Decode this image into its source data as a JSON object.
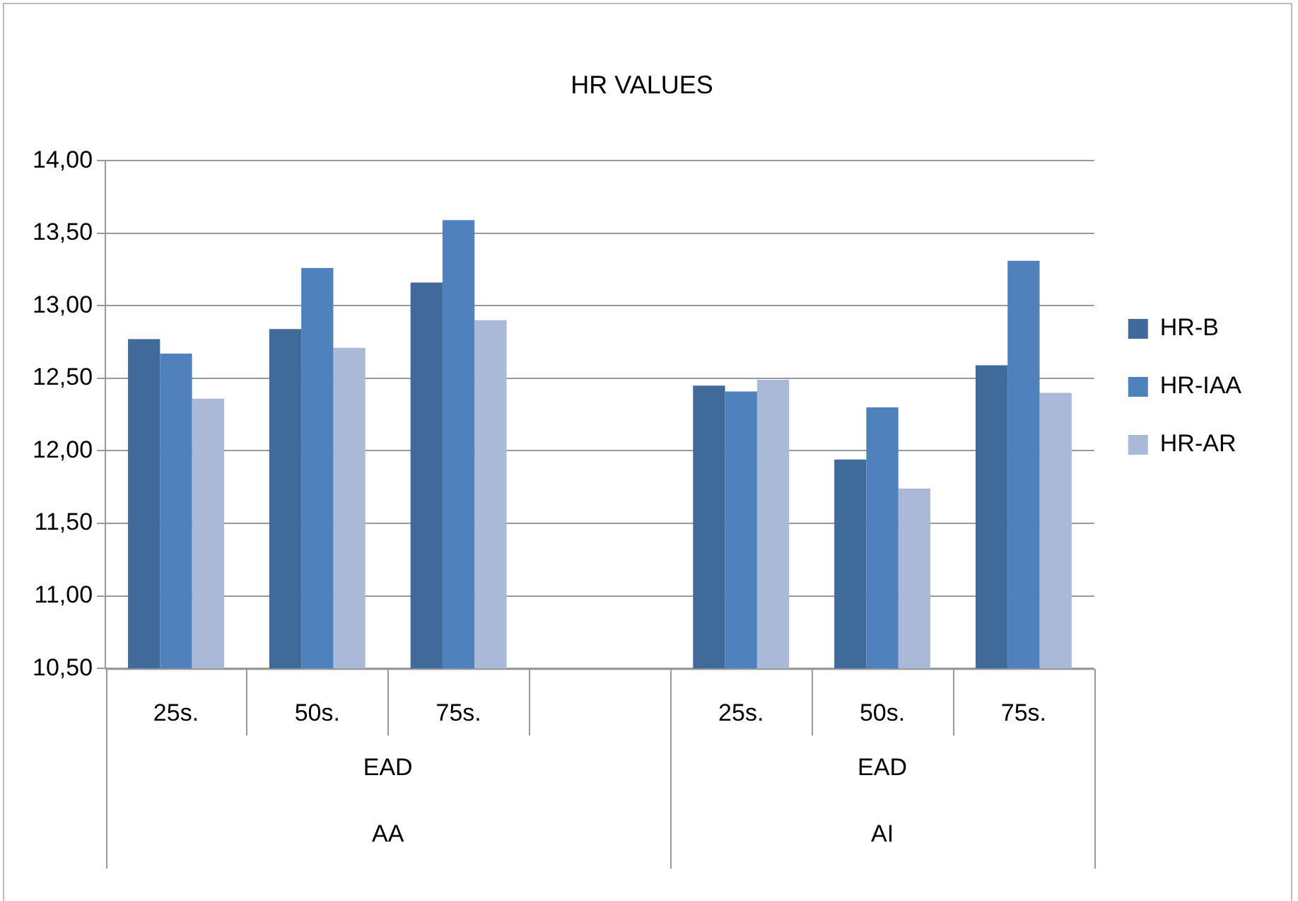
{
  "chart_data": {
    "type": "bar",
    "title": "HR VALUES",
    "categories": [
      "25s.",
      "50s.",
      "75s.",
      null,
      "25s.",
      "50s.",
      "75s."
    ],
    "series": [
      {
        "name": "HR-B",
        "color": "#3f6a9a",
        "values": [
          12.77,
          12.84,
          13.16,
          null,
          12.45,
          11.94,
          12.59
        ]
      },
      {
        "name": "HR-IAA",
        "color": "#4f81bd",
        "values": [
          12.67,
          13.26,
          13.59,
          null,
          12.41,
          12.3,
          13.31
        ]
      },
      {
        "name": "HR-AR",
        "color": "#aab9d8",
        "values": [
          12.36,
          12.71,
          12.9,
          null,
          12.49,
          11.74,
          12.4
        ]
      }
    ],
    "ylim": [
      10.5,
      14
    ],
    "yticks": [
      {
        "value": 10.5,
        "label": "10,50"
      },
      {
        "value": 11,
        "label": "11,00"
      },
      {
        "value": 11.5,
        "label": "11,50"
      },
      {
        "value": 12,
        "label": "12,00"
      },
      {
        "value": 12.5,
        "label": "12,50"
      },
      {
        "value": 13,
        "label": "13,00"
      },
      {
        "value": 13.5,
        "label": "13,50"
      },
      {
        "value": 14,
        "label": "14,00"
      }
    ],
    "grid": "y",
    "legend": "right",
    "annotations": [
      "EAD",
      "AA",
      "EAD",
      "AI"
    ]
  }
}
